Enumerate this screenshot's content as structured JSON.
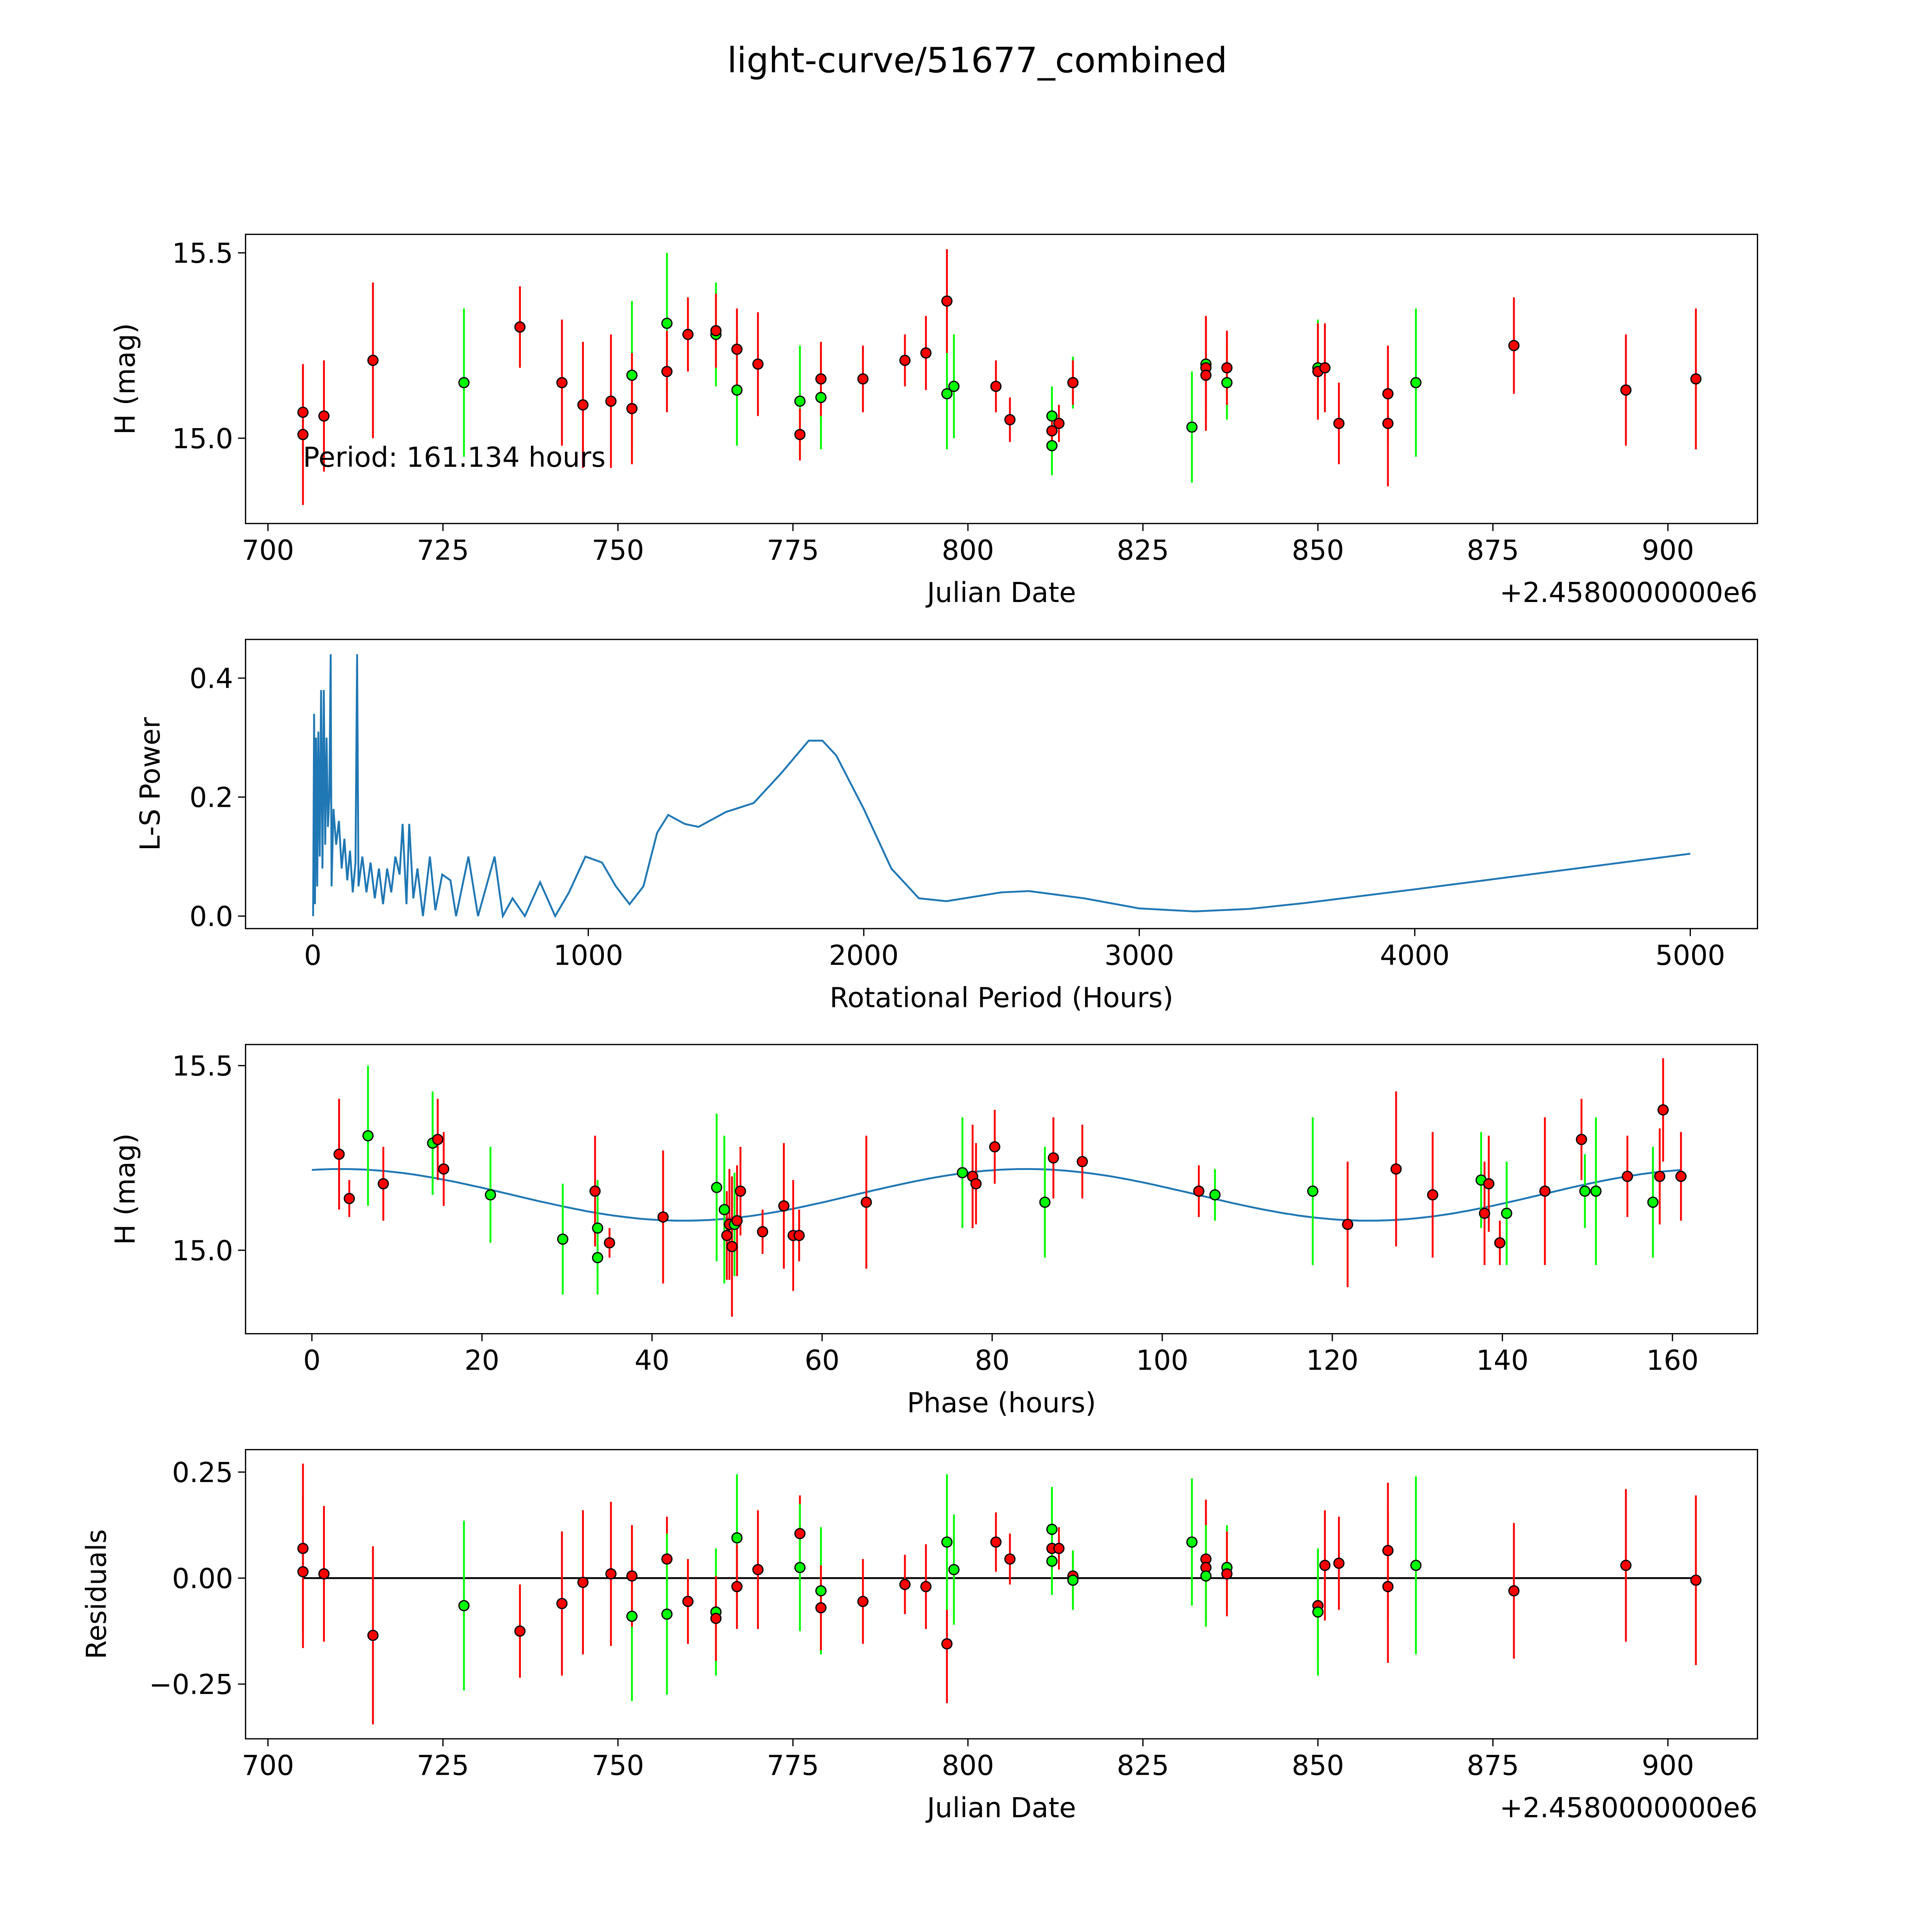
{
  "title": "light-curve/51677_combined",
  "colors": {
    "red": "#ff0000",
    "green": "#00ff00",
    "line": "#1f77b4",
    "edge": "#000000"
  },
  "chart_data": [
    {
      "id": "lc",
      "type": "scatter",
      "xlabel": "Julian Date",
      "ylabel": "H (mag)",
      "offset_text": "+2.4580000000e6",
      "xlim": [
        696.8,
        912.8
      ],
      "ylim": [
        14.77,
        15.55
      ],
      "xticks": [
        700,
        725,
        750,
        775,
        800,
        825,
        850,
        875,
        900
      ],
      "xtick_labels": [
        "700",
        "725",
        "750",
        "775",
        "800",
        "825",
        "850",
        "875",
        "900"
      ],
      "yticks": [
        15.0,
        15.5
      ],
      "ytick_labels": [
        "15.0",
        "15.5"
      ],
      "annotation": {
        "text": "Period: 161.134 hours",
        "x": 705,
        "y": 14.95
      },
      "points": [
        [
          705,
          15.07,
          0.12,
          "red"
        ],
        [
          705,
          15.01,
          0.19,
          "red"
        ],
        [
          708,
          15.06,
          0.15,
          "red"
        ],
        [
          715,
          15.21,
          0.21,
          "red"
        ],
        [
          728,
          15.15,
          0.2,
          "green"
        ],
        [
          736,
          15.3,
          0.11,
          "red"
        ],
        [
          742,
          15.15,
          0.17,
          "red"
        ],
        [
          745,
          15.09,
          0.17,
          "red"
        ],
        [
          749,
          15.1,
          0.18,
          "red"
        ],
        [
          752,
          15.17,
          0.2,
          "green"
        ],
        [
          752,
          15.08,
          0.15,
          "red"
        ],
        [
          757,
          15.31,
          0.19,
          "green"
        ],
        [
          757,
          15.18,
          0.11,
          "red"
        ],
        [
          760,
          15.28,
          0.1,
          "red"
        ],
        [
          764,
          15.28,
          0.14,
          "green"
        ],
        [
          764,
          15.29,
          0.1,
          "red"
        ],
        [
          767,
          15.13,
          0.15,
          "green"
        ],
        [
          767,
          15.24,
          0.11,
          "red"
        ],
        [
          770,
          15.2,
          0.14,
          "red"
        ],
        [
          776,
          15.1,
          0.15,
          "green"
        ],
        [
          776,
          15.01,
          0.07,
          "red"
        ],
        [
          779,
          15.11,
          0.14,
          "green"
        ],
        [
          779,
          15.16,
          0.1,
          "red"
        ],
        [
          785,
          15.16,
          0.09,
          "red"
        ],
        [
          791,
          15.21,
          0.07,
          "red"
        ],
        [
          794,
          15.23,
          0.1,
          "red"
        ],
        [
          797,
          15.12,
          0.15,
          "green"
        ],
        [
          797,
          15.37,
          0.14,
          "red"
        ],
        [
          798,
          15.14,
          0.14,
          "green"
        ],
        [
          804,
          15.14,
          0.07,
          "red"
        ],
        [
          806,
          15.05,
          0.06,
          "red"
        ],
        [
          812,
          15.06,
          0.08,
          "green"
        ],
        [
          812,
          14.98,
          0.08,
          "green"
        ],
        [
          812,
          15.02,
          0.05,
          "red"
        ],
        [
          813,
          15.04,
          0.05,
          "red"
        ],
        [
          815,
          15.15,
          0.07,
          "green"
        ],
        [
          815,
          15.15,
          0.06,
          "red"
        ],
        [
          832,
          15.03,
          0.15,
          "green"
        ],
        [
          834,
          15.2,
          0.13,
          "green"
        ],
        [
          834,
          15.19,
          0.14,
          "red"
        ],
        [
          834,
          15.17,
          0.15,
          "red"
        ],
        [
          837,
          15.15,
          0.1,
          "green"
        ],
        [
          837,
          15.19,
          0.1,
          "red"
        ],
        [
          850,
          15.19,
          0.13,
          "green"
        ],
        [
          850,
          15.18,
          0.13,
          "red"
        ],
        [
          851,
          15.19,
          0.12,
          "red"
        ],
        [
          853,
          15.04,
          0.11,
          "red"
        ],
        [
          860,
          15.12,
          0.13,
          "red"
        ],
        [
          860,
          15.04,
          0.17,
          "red"
        ],
        [
          864,
          15.15,
          0.2,
          "green"
        ],
        [
          878,
          15.25,
          0.13,
          "red"
        ],
        [
          894,
          15.13,
          0.15,
          "red"
        ],
        [
          904,
          15.16,
          0.19,
          "red"
        ]
      ]
    },
    {
      "id": "ls",
      "type": "line",
      "xlabel": "Rotational Period (Hours)",
      "ylabel": "L-S Power",
      "xlim": [
        -244,
        5244
      ],
      "ylim": [
        -0.021,
        0.465
      ],
      "xticks": [
        0,
        1000,
        2000,
        3000,
        4000,
        5000
      ],
      "xtick_labels": [
        "0",
        "1000",
        "2000",
        "3000",
        "4000",
        "5000"
      ],
      "yticks": [
        0.0,
        0.2,
        0.4
      ],
      "ytick_labels": [
        "0.0",
        "0.2",
        "0.4"
      ],
      "x": [
        1,
        5,
        8,
        12,
        16,
        20,
        25,
        30,
        35,
        40,
        45,
        50,
        55,
        60,
        65,
        68,
        75,
        85,
        95,
        105,
        115,
        125,
        135,
        145,
        155,
        161,
        166,
        180,
        195,
        210,
        225,
        240,
        255,
        270,
        285,
        300,
        315,
        326,
        340,
        350,
        365,
        380,
        400,
        425,
        445,
        470,
        500,
        520,
        565,
        600,
        660,
        690,
        725,
        770,
        825,
        880,
        930,
        990,
        1050,
        1100,
        1150,
        1200,
        1250,
        1290,
        1350,
        1400,
        1500,
        1600,
        1700,
        1800,
        1850,
        1900,
        2000,
        2100,
        2200,
        2300,
        2500,
        2600,
        2800,
        3000,
        3200,
        3400,
        3600,
        4000,
        4500,
        5000
      ],
      "y": [
        0.0,
        0.34,
        0.02,
        0.3,
        0.05,
        0.31,
        0.1,
        0.38,
        0.08,
        0.38,
        0.12,
        0.3,
        0.15,
        0.2,
        0.44,
        0.05,
        0.18,
        0.12,
        0.16,
        0.08,
        0.13,
        0.06,
        0.11,
        0.04,
        0.09,
        0.44,
        0.05,
        0.1,
        0.04,
        0.09,
        0.03,
        0.08,
        0.02,
        0.08,
        0.04,
        0.1,
        0.07,
        0.155,
        0.02,
        0.155,
        0.03,
        0.08,
        0.0,
        0.1,
        0.01,
        0.07,
        0.06,
        0.0,
        0.1,
        0.0,
        0.1,
        0.0,
        0.03,
        0.0,
        0.057,
        0.0,
        0.04,
        0.1,
        0.09,
        0.05,
        0.02,
        0.05,
        0.14,
        0.17,
        0.155,
        0.15,
        0.175,
        0.19,
        0.24,
        0.295,
        0.295,
        0.27,
        0.18,
        0.08,
        0.03,
        0.025,
        0.04,
        0.042,
        0.03,
        0.013,
        0.008,
        0.012,
        0.022,
        0.045,
        0.075,
        0.105
      ]
    },
    {
      "id": "phase",
      "type": "scatter",
      "xlabel": "Phase (hours)",
      "ylabel": "H (mag)",
      "xlim": [
        -7.8,
        170
      ],
      "ylim": [
        14.774,
        15.557
      ],
      "xticks": [
        0,
        20,
        40,
        60,
        80,
        100,
        120,
        140,
        160
      ],
      "xtick_labels": [
        "0",
        "20",
        "40",
        "60",
        "80",
        "100",
        "120",
        "140",
        "160"
      ],
      "yticks": [
        15.0,
        15.5
      ],
      "ytick_labels": [
        "15.0",
        "15.5"
      ],
      "fit": {
        "mean": 15.15,
        "amplitude": 0.07,
        "period": 80.6,
        "peak": 84,
        "range": [
          0,
          161.134
        ]
      },
      "points": [
        [
          3.2,
          15.26,
          0.15,
          "red"
        ],
        [
          4.4,
          15.14,
          0.05,
          "red"
        ],
        [
          6.6,
          15.31,
          0.19,
          "green"
        ],
        [
          8.4,
          15.18,
          0.1,
          "red"
        ],
        [
          14.2,
          15.29,
          0.14,
          "green"
        ],
        [
          14.8,
          15.3,
          0.11,
          "red"
        ],
        [
          15.5,
          15.22,
          0.1,
          "red"
        ],
        [
          21,
          15.15,
          0.13,
          "green"
        ],
        [
          29.5,
          15.03,
          0.15,
          "green"
        ],
        [
          33.3,
          15.16,
          0.15,
          "red"
        ],
        [
          33.6,
          15.06,
          0.13,
          "green"
        ],
        [
          33.6,
          14.98,
          0.1,
          "green"
        ],
        [
          35,
          15.02,
          0.04,
          "red"
        ],
        [
          41.3,
          15.09,
          0.18,
          "red"
        ],
        [
          47.6,
          15.17,
          0.2,
          "green"
        ],
        [
          48.5,
          15.11,
          0.2,
          "green"
        ],
        [
          48.8,
          15.04,
          0.12,
          "red"
        ],
        [
          49.1,
          15.07,
          0.15,
          "red"
        ],
        [
          49.4,
          15.01,
          0.19,
          "red"
        ],
        [
          49.7,
          15.07,
          0.14,
          "green"
        ],
        [
          50,
          15.08,
          0.15,
          "red"
        ],
        [
          50.4,
          15.16,
          0.12,
          "red"
        ],
        [
          53,
          15.05,
          0.06,
          "red"
        ],
        [
          55.5,
          15.12,
          0.17,
          "red"
        ],
        [
          56.6,
          15.04,
          0.15,
          "red"
        ],
        [
          57.3,
          15.04,
          0.07,
          "red"
        ],
        [
          65.2,
          15.13,
          0.18,
          "red"
        ],
        [
          76.5,
          15.21,
          0.15,
          "green"
        ],
        [
          77.7,
          15.2,
          0.14,
          "red"
        ],
        [
          78.1,
          15.18,
          0.11,
          "red"
        ],
        [
          80.3,
          15.28,
          0.1,
          "red"
        ],
        [
          86.2,
          15.13,
          0.15,
          "green"
        ],
        [
          87.2,
          15.25,
          0.11,
          "red"
        ],
        [
          90.6,
          15.24,
          0.1,
          "red"
        ],
        [
          104.3,
          15.16,
          0.07,
          "red"
        ],
        [
          106.2,
          15.15,
          0.07,
          "green"
        ],
        [
          117.7,
          15.16,
          0.2,
          "green"
        ],
        [
          121.8,
          15.07,
          0.17,
          "red"
        ],
        [
          127.5,
          15.22,
          0.21,
          "red"
        ],
        [
          131.8,
          15.15,
          0.17,
          "red"
        ],
        [
          137.5,
          15.19,
          0.13,
          "green"
        ],
        [
          137.9,
          15.1,
          0.14,
          "red"
        ],
        [
          138.4,
          15.18,
          0.13,
          "red"
        ],
        [
          139.7,
          15.02,
          0.06,
          "red"
        ],
        [
          140.5,
          15.1,
          0.14,
          "green"
        ],
        [
          145,
          15.16,
          0.2,
          "red"
        ],
        [
          149.3,
          15.3,
          0.11,
          "red"
        ],
        [
          149.7,
          15.16,
          0.1,
          "green"
        ],
        [
          151,
          15.16,
          0.2,
          "green"
        ],
        [
          154.7,
          15.2,
          0.11,
          "red"
        ],
        [
          157.7,
          15.13,
          0.15,
          "green"
        ],
        [
          158.5,
          15.2,
          0.13,
          "red"
        ],
        [
          158.9,
          15.38,
          0.14,
          "red"
        ],
        [
          161,
          15.2,
          0.12,
          "red"
        ]
      ]
    },
    {
      "id": "resid",
      "type": "scatter",
      "xlabel": "Julian Date",
      "ylabel": "Residuals",
      "offset_text": "+2.4580000000e6",
      "xlim": [
        696.8,
        912.8
      ],
      "ylim": [
        -0.379,
        0.303
      ],
      "xticks": [
        700,
        725,
        750,
        775,
        800,
        825,
        850,
        875,
        900
      ],
      "xtick_labels": [
        "700",
        "725",
        "750",
        "775",
        "800",
        "825",
        "850",
        "875",
        "900"
      ],
      "yticks": [
        -0.25,
        0.0,
        0.25
      ],
      "ytick_labels": [
        "−0.25",
        "0.00",
        "0.25"
      ],
      "zero_line": [
        705,
        904
      ],
      "points": [
        [
          705,
          0.07,
          0.2,
          "red"
        ],
        [
          705,
          0.015,
          0.18,
          "red"
        ],
        [
          708,
          0.01,
          0.16,
          "red"
        ],
        [
          715,
          -0.135,
          0.21,
          "red"
        ],
        [
          728,
          -0.065,
          0.2,
          "green"
        ],
        [
          736,
          -0.125,
          0.11,
          "red"
        ],
        [
          742,
          -0.06,
          0.17,
          "red"
        ],
        [
          745,
          -0.01,
          0.17,
          "red"
        ],
        [
          749,
          0.01,
          0.17,
          "red"
        ],
        [
          752,
          -0.09,
          0.2,
          "green"
        ],
        [
          752,
          0.005,
          0.12,
          "red"
        ],
        [
          757,
          0.045,
          0.1,
          "red"
        ],
        [
          757,
          -0.085,
          0.19,
          "green"
        ],
        [
          760,
          -0.055,
          0.1,
          "red"
        ],
        [
          764,
          -0.08,
          0.15,
          "green"
        ],
        [
          764,
          -0.095,
          0.1,
          "red"
        ],
        [
          767,
          0.095,
          0.15,
          "green"
        ],
        [
          767,
          -0.02,
          0.1,
          "red"
        ],
        [
          770,
          0.02,
          0.14,
          "red"
        ],
        [
          776,
          0.105,
          0.09,
          "red"
        ],
        [
          776,
          0.025,
          0.15,
          "green"
        ],
        [
          779,
          -0.03,
          0.15,
          "green"
        ],
        [
          779,
          -0.07,
          0.1,
          "red"
        ],
        [
          785,
          -0.055,
          0.1,
          "red"
        ],
        [
          791,
          -0.015,
          0.07,
          "red"
        ],
        [
          794,
          -0.02,
          0.1,
          "red"
        ],
        [
          797,
          -0.155,
          0.14,
          "red"
        ],
        [
          797,
          0.085,
          0.16,
          "green"
        ],
        [
          798,
          0.02,
          0.13,
          "green"
        ],
        [
          804,
          0.085,
          0.07,
          "red"
        ],
        [
          806,
          0.045,
          0.06,
          "red"
        ],
        [
          812,
          0.115,
          0.1,
          "green"
        ],
        [
          812,
          0.07,
          0.05,
          "red"
        ],
        [
          813,
          0.07,
          0.05,
          "red"
        ],
        [
          812,
          0.04,
          0.08,
          "green"
        ],
        [
          815,
          0.005,
          0.06,
          "red"
        ],
        [
          815,
          -0.005,
          0.07,
          "green"
        ],
        [
          832,
          0.085,
          0.15,
          "green"
        ],
        [
          834,
          0.045,
          0.14,
          "red"
        ],
        [
          834,
          0.025,
          0.13,
          "red"
        ],
        [
          834,
          0.005,
          0.12,
          "green"
        ],
        [
          837,
          0.025,
          0.1,
          "green"
        ],
        [
          837,
          0.01,
          0.1,
          "red"
        ],
        [
          850,
          -0.065,
          0.13,
          "red"
        ],
        [
          850,
          -0.08,
          0.15,
          "green"
        ],
        [
          851,
          0.03,
          0.13,
          "red"
        ],
        [
          853,
          0.035,
          0.11,
          "red"
        ],
        [
          860,
          0.065,
          0.16,
          "red"
        ],
        [
          860,
          -0.02,
          0.18,
          "red"
        ],
        [
          864,
          0.03,
          0.21,
          "green"
        ],
        [
          878,
          -0.03,
          0.16,
          "red"
        ],
        [
          894,
          0.03,
          0.18,
          "red"
        ],
        [
          904,
          -0.005,
          0.2,
          "red"
        ]
      ]
    }
  ]
}
